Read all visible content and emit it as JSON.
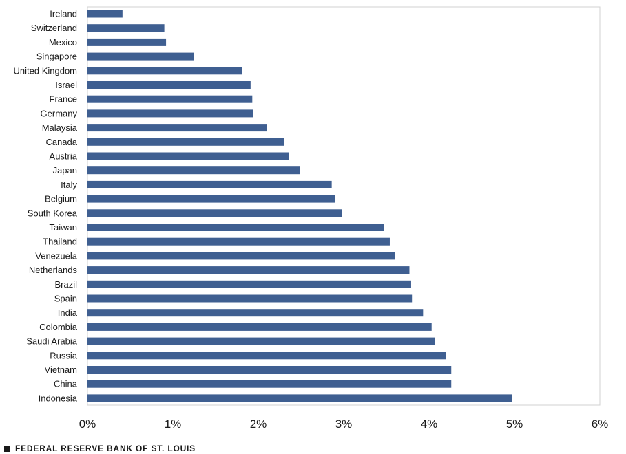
{
  "colors": {
    "bar": "#3f5f91",
    "frame": "#d0d0d0",
    "text": "#1a1a1a"
  },
  "footer": {
    "text": "FEDERAL RESERVE BANK OF ST. LOUIS",
    "icon": "square-icon"
  },
  "chart_data": {
    "type": "bar",
    "orientation": "horizontal",
    "title": "",
    "xlabel": "",
    "ylabel": "",
    "xlim": [
      0,
      6
    ],
    "x_ticks": [
      "0%",
      "1%",
      "2%",
      "3%",
      "4%",
      "5%",
      "6%"
    ],
    "grid": false,
    "categories": [
      "Ireland",
      "Switzerland",
      "Mexico",
      "Singapore",
      "United Kingdom",
      "Israel",
      "France",
      "Germany",
      "Malaysia",
      "Canada",
      "Austria",
      "Japan",
      "Italy",
      "Belgium",
      "South Korea",
      "Taiwan",
      "Thailand",
      "Venezuela",
      "Netherlands",
      "Brazil",
      "Spain",
      "India",
      "Colombia",
      "Saudi Arabia",
      "Russia",
      "Vietnam",
      "China",
      "Indonesia"
    ],
    "values": [
      0.41,
      0.9,
      0.92,
      1.25,
      1.81,
      1.91,
      1.93,
      1.94,
      2.1,
      2.3,
      2.36,
      2.49,
      2.86,
      2.9,
      2.98,
      3.47,
      3.54,
      3.6,
      3.77,
      3.79,
      3.8,
      3.93,
      4.03,
      4.07,
      4.2,
      4.26,
      4.26,
      4.97
    ]
  }
}
